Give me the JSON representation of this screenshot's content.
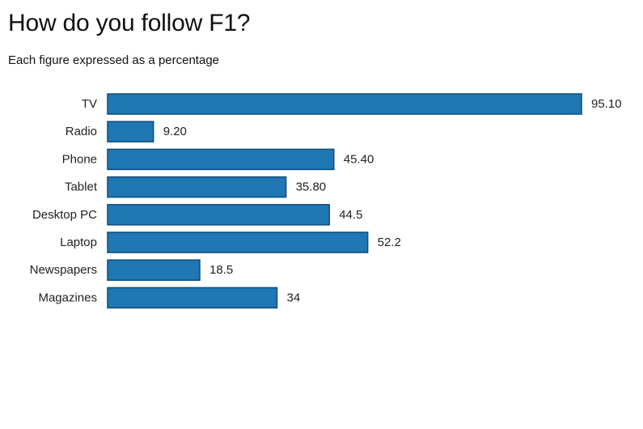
{
  "chart_data": {
    "type": "bar",
    "orientation": "horizontal",
    "title": "How do you follow F1?",
    "subtitle": "Each figure expressed as a percentage",
    "categories": [
      "TV",
      "Radio",
      "Phone",
      "Tablet",
      "Desktop PC",
      "Laptop",
      "Newspapers",
      "Magazines"
    ],
    "values": [
      95.1,
      9.2,
      45.4,
      35.8,
      44.5,
      52.2,
      18.5,
      34
    ],
    "value_labels": [
      "95.10",
      "9.20",
      "45.40",
      "35.80",
      "44.5",
      "52.2",
      "18.5",
      "34"
    ],
    "xlim": [
      0,
      95.1
    ],
    "grid": false,
    "legend": "none",
    "bar_color": "#1f77b4",
    "bar_stroke": "#0f4d7a"
  }
}
